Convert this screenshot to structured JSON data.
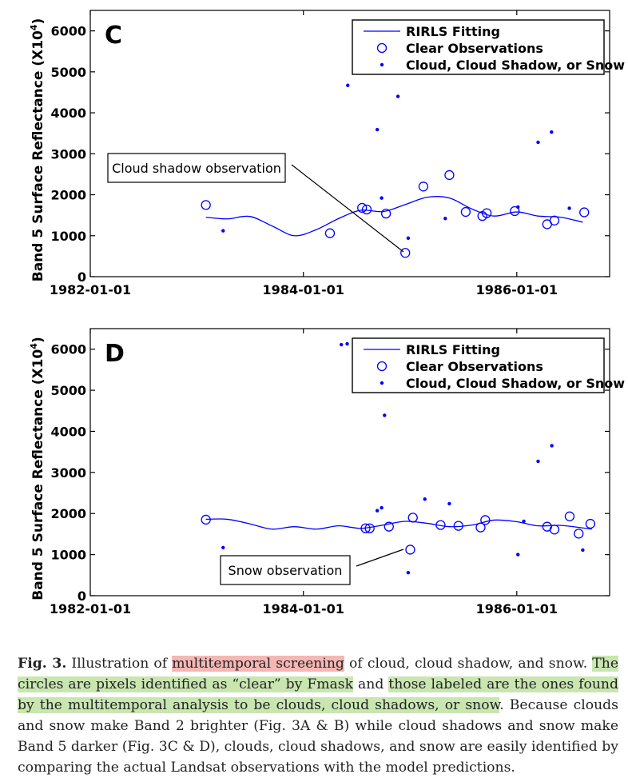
{
  "figure": {
    "panels": [
      {
        "letter": "C",
        "ylabel": "Band 5 Surface Reflectance (X10",
        "ylabel_sup": "4",
        "ylabel_close": ")",
        "legend": [
          "RIRLS Fitting",
          "Clear Observations",
          "Cloud, Cloud Shadow, or Snow"
        ],
        "annotation": "Cloud shadow observation"
      },
      {
        "letter": "D",
        "ylabel": "Band 5 Surface Reflectance (X10",
        "ylabel_sup": "4",
        "ylabel_close": ")",
        "legend": [
          "RIRLS Fitting",
          "Clear Observations",
          "Cloud, Cloud Shadow, or Snow"
        ],
        "annotation": "Snow observation"
      }
    ]
  },
  "chart_data": [
    {
      "type": "scatter",
      "panel": "C",
      "xlim": [
        "1982-01-01",
        "1986-11-15"
      ],
      "ylim": [
        0,
        6500
      ],
      "xticks": [
        "1982-01-01",
        "1984-01-01",
        "1986-01-01"
      ],
      "yticks": [
        0,
        1000,
        2000,
        3000,
        4000,
        5000,
        6000
      ],
      "grid": false,
      "legend_position": "top-right",
      "series": [
        {
          "name": "RIRLS Fitting",
          "kind": "line",
          "color": "#0000ff",
          "x": [
            "1983-02-01",
            "1983-04-15",
            "1983-07-01",
            "1983-09-15",
            "1983-12-01",
            "1984-02-15",
            "1984-05-01",
            "1984-07-15",
            "1984-10-01",
            "1984-12-15",
            "1985-03-01",
            "1985-05-15",
            "1985-08-01",
            "1985-10-15",
            "1986-01-01",
            "1986-03-15",
            "1986-06-01",
            "1986-08-15"
          ],
          "y": [
            1450,
            1410,
            1470,
            1240,
            1000,
            1150,
            1420,
            1620,
            1590,
            1760,
            1940,
            1920,
            1650,
            1480,
            1580,
            1480,
            1450,
            1330
          ]
        },
        {
          "name": "Clear Observations",
          "kind": "circle",
          "color": "#0000ff",
          "x": [
            "1983-02-01",
            "1984-04-01",
            "1984-07-20",
            "1984-08-05",
            "1984-10-10",
            "1984-12-15",
            "1985-02-15",
            "1985-05-15",
            "1985-07-10",
            "1985-09-05",
            "1985-09-20",
            "1985-12-25",
            "1986-04-15",
            "1986-05-10",
            "1986-08-20"
          ],
          "y": [
            1750,
            1060,
            1680,
            1640,
            1540,
            580,
            2200,
            2480,
            1580,
            1480,
            1550,
            1600,
            1280,
            1370,
            1570
          ]
        },
        {
          "name": "Cloud, Cloud Shadow, or Snow",
          "kind": "dot",
          "color": "#0000ff",
          "x": [
            "1983-04-01",
            "1984-06-01",
            "1984-09-10",
            "1984-09-25",
            "1984-11-20",
            "1984-12-25",
            "1985-05-01",
            "1986-01-05",
            "1986-03-15",
            "1986-04-30",
            "1986-06-30"
          ],
          "y": [
            1120,
            4670,
            3590,
            1920,
            4400,
            940,
            1420,
            1700,
            3280,
            3530,
            1670
          ]
        }
      ]
    },
    {
      "type": "scatter",
      "panel": "D",
      "xlim": [
        "1982-01-01",
        "1986-11-15"
      ],
      "ylim": [
        0,
        6500
      ],
      "xticks": [
        "1982-01-01",
        "1984-01-01",
        "1986-01-01"
      ],
      "yticks": [
        0,
        1000,
        2000,
        3000,
        4000,
        5000,
        6000
      ],
      "grid": false,
      "legend_position": "top-right",
      "series": [
        {
          "name": "RIRLS Fitting",
          "kind": "line",
          "color": "#0000ff",
          "x": [
            "1983-02-01",
            "1983-04-15",
            "1983-07-01",
            "1983-09-15",
            "1983-12-01",
            "1984-02-15",
            "1984-05-01",
            "1984-07-15",
            "1984-10-01",
            "1984-12-15",
            "1985-03-01",
            "1985-05-15",
            "1985-08-01",
            "1985-10-15",
            "1986-01-01",
            "1986-03-15",
            "1986-06-01",
            "1986-09-15"
          ],
          "y": [
            1860,
            1860,
            1750,
            1620,
            1680,
            1620,
            1700,
            1640,
            1720,
            1810,
            1760,
            1680,
            1720,
            1840,
            1800,
            1700,
            1710,
            1620
          ]
        },
        {
          "name": "Clear Observations",
          "kind": "circle",
          "color": "#0000ff",
          "x": [
            "1983-02-01",
            "1984-08-01",
            "1984-08-15",
            "1984-10-20",
            "1985-01-10",
            "1985-04-15",
            "1985-06-15",
            "1985-08-30",
            "1985-09-15",
            "1986-04-15",
            "1986-05-10",
            "1986-07-01",
            "1986-08-01",
            "1986-09-10",
            "1985-01-01"
          ],
          "y": [
            1850,
            1640,
            1640,
            1680,
            1900,
            1720,
            1700,
            1660,
            1840,
            1680,
            1610,
            1930,
            1510,
            1750,
            1120
          ]
        },
        {
          "name": "Cloud, Cloud Shadow, or Snow",
          "kind": "dot",
          "color": "#0000ff",
          "x": [
            "1983-04-01",
            "1984-05-10",
            "1984-05-30",
            "1984-09-10",
            "1984-09-25",
            "1984-10-05",
            "1984-12-25",
            "1985-02-20",
            "1985-05-15",
            "1986-01-05",
            "1986-01-25",
            "1986-03-15",
            "1986-05-01",
            "1986-08-15"
          ],
          "y": [
            1170,
            6110,
            6130,
            2070,
            2140,
            4390,
            560,
            2350,
            2240,
            1000,
            1810,
            3270,
            3650,
            1110
          ]
        }
      ]
    }
  ],
  "caption": {
    "label": "Fig. 3.",
    "t1": " Illustration of ",
    "h1": "multitemporal screening",
    "t2": " of cloud, cloud shadow, and snow. ",
    "h2": "The circles are pixels identified as “clear” by Fmask",
    "t3": " and ",
    "h3": "those labeled are the ones found by the multitemporal analysis to be clouds, cloud shadows, or snow",
    "t4": ". Because clouds and snow make Band 2 brighter (Fig. 3A & B) while cloud shadows and snow make Band 5 darker (Fig. 3C & D), clouds, cloud shadows, and snow are easily identified by comparing the actual Landsat observations with the model predictions."
  }
}
